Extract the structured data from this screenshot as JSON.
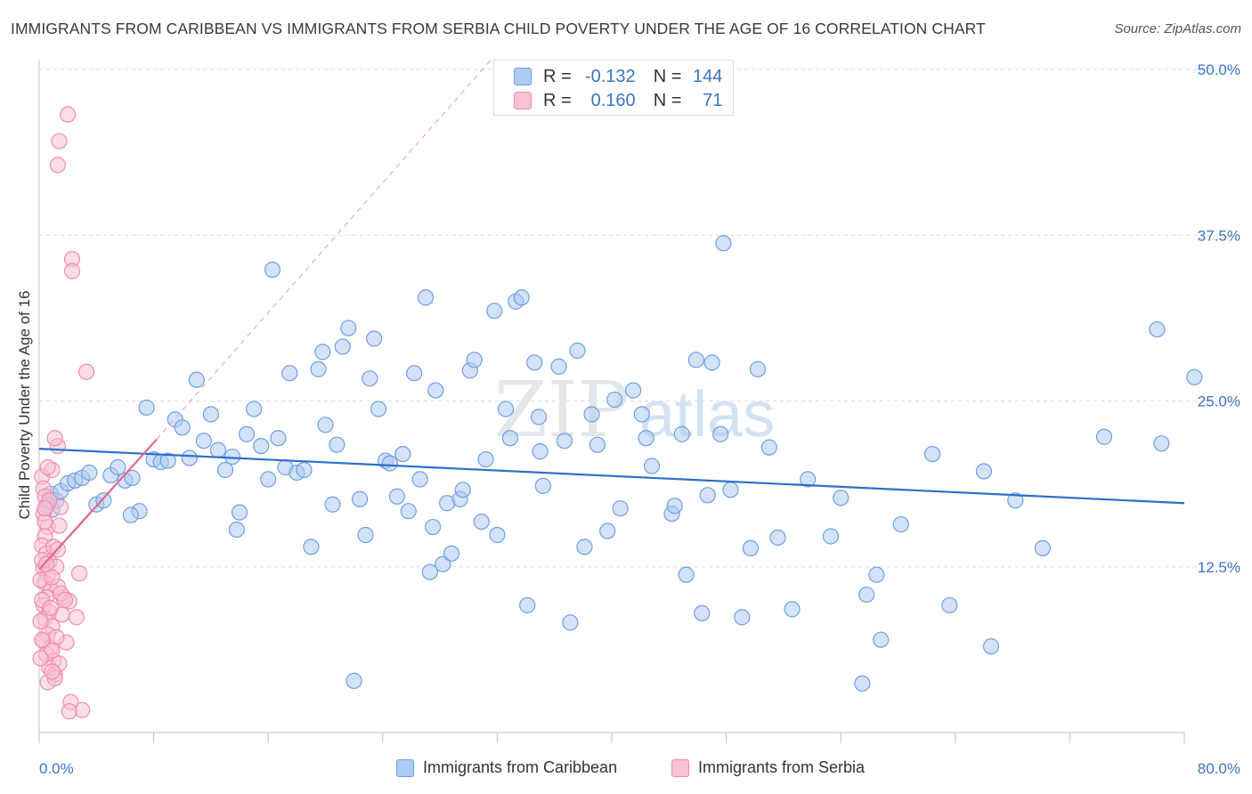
{
  "title": "IMMIGRANTS FROM CARIBBEAN VS IMMIGRANTS FROM SERBIA CHILD POVERTY UNDER THE AGE OF 16 CORRELATION CHART",
  "source": "Source: ZipAtlas.com",
  "watermark": {
    "zip": "ZIP",
    "atlas": "atlas"
  },
  "legend_top": {
    "rows": [
      {
        "r_label": "R =",
        "r_value": "-0.132",
        "n_label": "N =",
        "n_value": "144",
        "color": "#6f9fe0"
      },
      {
        "r_label": "R =",
        "r_value": "0.160",
        "n_label": "N =",
        "n_value": "71",
        "color": "#f08cae"
      }
    ]
  },
  "chart_data": {
    "type": "scatter",
    "title": "IMMIGRANTS FROM CARIBBEAN VS IMMIGRANTS FROM SERBIA CHILD POVERTY UNDER THE AGE OF 16 CORRELATION CHART",
    "xlabel": "",
    "ylabel": "Child Poverty Under the Age of 16",
    "xlim": [
      0,
      80
    ],
    "ylim": [
      0,
      50
    ],
    "x_tick_labels": [
      "0.0%",
      "80.0%"
    ],
    "y_ticks": [
      12.5,
      25.0,
      37.5,
      50.0
    ],
    "y_tick_labels": [
      "12.5%",
      "25.0%",
      "37.5%",
      "50.0%"
    ],
    "grid": "horizontal-dashed",
    "legend_position": "top-center",
    "series": [
      {
        "name": "Immigrants from Caribbean",
        "color": "#6f9fe0",
        "fill": "#aecbf2",
        "trend": {
          "x": [
            0,
            80
          ],
          "y": [
            21.4,
            17.3
          ]
        },
        "points": [
          [
            0.8,
            18.0
          ],
          [
            0.6,
            17.2
          ],
          [
            0.9,
            16.8
          ],
          [
            1.2,
            17.5
          ],
          [
            1.5,
            18.2
          ],
          [
            2.0,
            18.8
          ],
          [
            2.5,
            19.0
          ],
          [
            3.0,
            19.2
          ],
          [
            3.5,
            19.6
          ],
          [
            4.0,
            17.2
          ],
          [
            4.5,
            17.5
          ],
          [
            5.0,
            19.4
          ],
          [
            5.5,
            20.0
          ],
          [
            6.0,
            19.0
          ],
          [
            6.5,
            19.2
          ],
          [
            7.0,
            16.7
          ],
          [
            7.5,
            24.5
          ],
          [
            8.0,
            20.6
          ],
          [
            8.5,
            20.4
          ],
          [
            9.0,
            20.5
          ],
          [
            9.5,
            23.6
          ],
          [
            10.0,
            23.0
          ],
          [
            10.5,
            20.7
          ],
          [
            11.0,
            26.6
          ],
          [
            11.5,
            22.0
          ],
          [
            12.0,
            24.0
          ],
          [
            12.5,
            21.3
          ],
          [
            13.0,
            19.8
          ],
          [
            13.5,
            20.8
          ],
          [
            14.0,
            16.6
          ],
          [
            14.5,
            22.5
          ],
          [
            15.0,
            24.4
          ],
          [
            15.5,
            21.6
          ],
          [
            16.0,
            19.1
          ],
          [
            16.3,
            34.9
          ],
          [
            16.7,
            22.2
          ],
          [
            17.2,
            20.0
          ],
          [
            17.5,
            27.1
          ],
          [
            18.0,
            19.6
          ],
          [
            18.5,
            19.8
          ],
          [
            19.0,
            14.0
          ],
          [
            19.5,
            27.4
          ],
          [
            19.8,
            28.7
          ],
          [
            20.0,
            23.2
          ],
          [
            20.5,
            17.2
          ],
          [
            20.8,
            21.7
          ],
          [
            21.2,
            29.1
          ],
          [
            21.6,
            30.5
          ],
          [
            22.0,
            3.9
          ],
          [
            22.4,
            17.6
          ],
          [
            22.8,
            14.9
          ],
          [
            23.1,
            26.7
          ],
          [
            23.4,
            29.7
          ],
          [
            23.7,
            24.4
          ],
          [
            24.2,
            20.5
          ],
          [
            24.5,
            20.3
          ],
          [
            25.0,
            17.8
          ],
          [
            25.4,
            21.0
          ],
          [
            25.8,
            16.7
          ],
          [
            26.2,
            27.1
          ],
          [
            26.6,
            19.1
          ],
          [
            27.0,
            32.8
          ],
          [
            27.3,
            12.1
          ],
          [
            27.7,
            25.8
          ],
          [
            28.2,
            12.7
          ],
          [
            28.5,
            17.3
          ],
          [
            28.8,
            13.5
          ],
          [
            29.4,
            17.6
          ],
          [
            29.6,
            18.3
          ],
          [
            30.1,
            27.3
          ],
          [
            30.4,
            28.1
          ],
          [
            30.9,
            15.9
          ],
          [
            31.2,
            20.6
          ],
          [
            31.8,
            31.8
          ],
          [
            32.0,
            14.9
          ],
          [
            32.6,
            24.4
          ],
          [
            32.9,
            22.2
          ],
          [
            33.3,
            32.5
          ],
          [
            33.7,
            32.8
          ],
          [
            34.1,
            9.6
          ],
          [
            34.6,
            27.9
          ],
          [
            34.9,
            23.8
          ],
          [
            35.2,
            18.6
          ],
          [
            36.3,
            27.6
          ],
          [
            36.7,
            22.0
          ],
          [
            37.1,
            8.3
          ],
          [
            37.6,
            28.8
          ],
          [
            38.1,
            14.0
          ],
          [
            38.6,
            24.0
          ],
          [
            39.0,
            21.7
          ],
          [
            39.7,
            15.2
          ],
          [
            40.2,
            25.1
          ],
          [
            40.6,
            16.9
          ],
          [
            41.5,
            25.8
          ],
          [
            42.1,
            24.0
          ],
          [
            42.4,
            22.2
          ],
          [
            42.8,
            20.1
          ],
          [
            44.2,
            16.5
          ],
          [
            44.4,
            17.1
          ],
          [
            44.9,
            22.5
          ],
          [
            45.2,
            11.9
          ],
          [
            45.9,
            28.1
          ],
          [
            46.3,
            9.0
          ],
          [
            47.0,
            27.9
          ],
          [
            47.6,
            22.5
          ],
          [
            47.8,
            36.9
          ],
          [
            48.3,
            18.3
          ],
          [
            49.1,
            8.7
          ],
          [
            49.7,
            13.9
          ],
          [
            50.2,
            27.4
          ],
          [
            51.0,
            21.5
          ],
          [
            51.6,
            14.7
          ],
          [
            52.6,
            9.3
          ],
          [
            53.7,
            19.1
          ],
          [
            55.3,
            14.8
          ],
          [
            56.0,
            17.7
          ],
          [
            57.5,
            3.7
          ],
          [
            57.8,
            10.4
          ],
          [
            58.5,
            11.9
          ],
          [
            58.8,
            7.0
          ],
          [
            60.2,
            15.7
          ],
          [
            62.4,
            21.0
          ],
          [
            63.6,
            9.6
          ],
          [
            66.0,
            19.7
          ],
          [
            66.5,
            6.5
          ],
          [
            68.2,
            17.5
          ],
          [
            70.1,
            13.9
          ],
          [
            74.4,
            22.3
          ],
          [
            78.1,
            30.4
          ],
          [
            78.4,
            21.8
          ],
          [
            80.7,
            26.8
          ],
          [
            13.8,
            15.3
          ],
          [
            6.4,
            16.4
          ],
          [
            27.5,
            15.5
          ],
          [
            35.0,
            21.2
          ],
          [
            46.7,
            17.9
          ]
        ]
      },
      {
        "name": "Immigrants from Serbia",
        "color": "#f08cae",
        "fill": "#f8c1d4",
        "trend": {
          "x": [
            0,
            8.2
          ],
          "y": [
            12.3,
            22.1
          ]
        },
        "points": [
          [
            0.2,
            19.3
          ],
          [
            0.3,
            18.4
          ],
          [
            0.4,
            17.8
          ],
          [
            0.5,
            17.1
          ],
          [
            0.3,
            16.5
          ],
          [
            0.6,
            15.5
          ],
          [
            0.4,
            14.8
          ],
          [
            0.2,
            14.1
          ],
          [
            0.5,
            13.5
          ],
          [
            0.7,
            12.9
          ],
          [
            0.3,
            12.4
          ],
          [
            0.6,
            11.9
          ],
          [
            0.4,
            11.3
          ],
          [
            0.8,
            10.8
          ],
          [
            0.5,
            10.2
          ],
          [
            0.3,
            9.6
          ],
          [
            0.7,
            9.1
          ],
          [
            0.4,
            8.6
          ],
          [
            0.9,
            8.0
          ],
          [
            0.6,
            7.4
          ],
          [
            0.3,
            6.9
          ],
          [
            0.8,
            6.4
          ],
          [
            0.5,
            5.9
          ],
          [
            1.0,
            5.4
          ],
          [
            0.7,
            4.9
          ],
          [
            1.1,
            4.4
          ],
          [
            0.6,
            3.8
          ],
          [
            1.3,
            21.6
          ],
          [
            1.5,
            17.0
          ],
          [
            1.7,
            10.2
          ],
          [
            1.9,
            6.8
          ],
          [
            2.1,
            9.9
          ],
          [
            2.3,
            35.7
          ],
          [
            2.3,
            34.8
          ],
          [
            1.4,
            44.6
          ],
          [
            1.3,
            42.8
          ],
          [
            2.0,
            46.6
          ],
          [
            2.8,
            12.0
          ],
          [
            3.3,
            27.2
          ],
          [
            3.0,
            1.7
          ],
          [
            2.2,
            2.3
          ],
          [
            2.1,
            1.6
          ],
          [
            1.1,
            22.2
          ],
          [
            0.9,
            19.8
          ],
          [
            1.4,
            15.6
          ],
          [
            1.0,
            14.0
          ],
          [
            1.2,
            12.5
          ],
          [
            1.3,
            11.0
          ],
          [
            1.5,
            10.5
          ],
          [
            1.6,
            8.9
          ],
          [
            1.2,
            7.2
          ],
          [
            0.9,
            6.2
          ],
          [
            1.4,
            5.2
          ],
          [
            1.1,
            4.1
          ],
          [
            0.2,
            13.0
          ],
          [
            0.1,
            11.5
          ],
          [
            0.2,
            10.0
          ],
          [
            0.1,
            8.4
          ],
          [
            0.2,
            7.0
          ],
          [
            0.1,
            5.6
          ],
          [
            0.4,
            15.9
          ],
          [
            0.7,
            17.5
          ],
          [
            0.5,
            12.7
          ],
          [
            0.9,
            11.7
          ],
          [
            1.8,
            10.0
          ],
          [
            2.6,
            8.7
          ],
          [
            0.8,
            9.4
          ],
          [
            0.6,
            20.0
          ],
          [
            0.4,
            16.9
          ],
          [
            1.3,
            13.8
          ],
          [
            0.9,
            4.6
          ]
        ]
      }
    ]
  },
  "legend_bottom": {
    "items": [
      {
        "label": "Immigrants from Caribbean",
        "color": "#6f9fe0",
        "fill": "#aecbf2"
      },
      {
        "label": "Immigrants from Serbia",
        "color": "#f08cae",
        "fill": "#f8c1d4"
      }
    ]
  }
}
